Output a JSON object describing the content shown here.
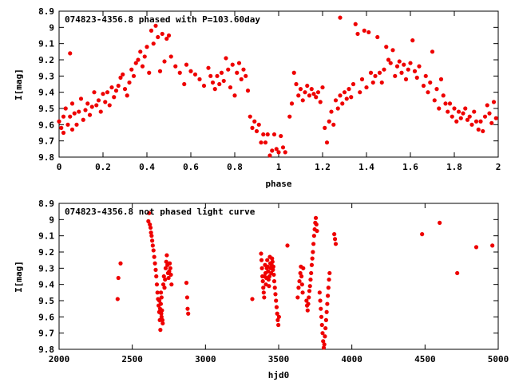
{
  "chart_data": [
    {
      "type": "scatter",
      "title": "074823-4356.8 phased with P=103.60day",
      "xlabel": "phase",
      "ylabel": "I[mag]",
      "xlim": [
        0,
        2
      ],
      "ylim": [
        9.8,
        8.9
      ],
      "y_reversed": true,
      "x_ticks": [
        "0",
        "0.2",
        "0.4",
        "0.6",
        "0.8",
        "1",
        "1.2",
        "1.4",
        "1.6",
        "1.8",
        "2"
      ],
      "y_ticks": [
        "8.9",
        "9",
        "9.1",
        "9.2",
        "9.3",
        "9.4",
        "9.5",
        "9.6",
        "9.7",
        "9.8"
      ],
      "marker_color": "#ee0000",
      "points": [
        [
          0.0,
          9.58
        ],
        [
          0.01,
          9.62
        ],
        [
          0.02,
          9.55
        ],
        [
          0.02,
          9.65
        ],
        [
          0.03,
          9.5
        ],
        [
          0.04,
          9.6
        ],
        [
          0.05,
          9.16
        ],
        [
          0.05,
          9.55
        ],
        [
          0.06,
          9.63
        ],
        [
          0.06,
          9.47
        ],
        [
          0.07,
          9.53
        ],
        [
          0.08,
          9.6
        ],
        [
          0.09,
          9.52
        ],
        [
          0.1,
          9.44
        ],
        [
          0.11,
          9.57
        ],
        [
          0.12,
          9.51
        ],
        [
          0.13,
          9.47
        ],
        [
          0.14,
          9.54
        ],
        [
          0.15,
          9.49
        ],
        [
          0.16,
          9.4
        ],
        [
          0.17,
          9.48
        ],
        [
          0.18,
          9.45
        ],
        [
          0.19,
          9.52
        ],
        [
          0.2,
          9.41
        ],
        [
          0.21,
          9.46
        ],
        [
          0.22,
          9.4
        ],
        [
          0.23,
          9.48
        ],
        [
          0.24,
          9.37
        ],
        [
          0.25,
          9.43
        ],
        [
          0.26,
          9.39
        ],
        [
          0.27,
          9.36
        ],
        [
          0.28,
          9.31
        ],
        [
          0.29,
          9.29
        ],
        [
          0.3,
          9.38
        ],
        [
          0.31,
          9.42
        ],
        [
          0.32,
          9.34
        ],
        [
          0.33,
          9.26
        ],
        [
          0.34,
          9.3
        ],
        [
          0.35,
          9.22
        ],
        [
          0.36,
          9.2
        ],
        [
          0.37,
          9.15
        ],
        [
          0.38,
          9.24
        ],
        [
          0.39,
          9.18
        ],
        [
          0.4,
          9.12
        ],
        [
          0.41,
          9.28
        ],
        [
          0.42,
          9.02
        ],
        [
          0.43,
          9.1
        ],
        [
          0.44,
          8.99
        ],
        [
          0.45,
          9.06
        ],
        [
          0.46,
          9.27
        ],
        [
          0.47,
          9.04
        ],
        [
          0.48,
          9.21
        ],
        [
          0.49,
          9.07
        ],
        [
          0.5,
          9.05
        ],
        [
          0.51,
          9.18
        ],
        [
          0.53,
          9.24
        ],
        [
          0.55,
          9.28
        ],
        [
          0.57,
          9.35
        ],
        [
          0.58,
          9.23
        ],
        [
          0.6,
          9.27
        ],
        [
          0.62,
          9.29
        ],
        [
          0.64,
          9.32
        ],
        [
          0.66,
          9.36
        ],
        [
          0.68,
          9.25
        ],
        [
          0.69,
          9.3
        ],
        [
          0.7,
          9.34
        ],
        [
          0.71,
          9.38
        ],
        [
          0.72,
          9.3
        ],
        [
          0.73,
          9.35
        ],
        [
          0.74,
          9.28
        ],
        [
          0.75,
          9.33
        ],
        [
          0.76,
          9.19
        ],
        [
          0.77,
          9.26
        ],
        [
          0.78,
          9.37
        ],
        [
          0.79,
          9.23
        ],
        [
          0.8,
          9.42
        ],
        [
          0.81,
          9.28
        ],
        [
          0.82,
          9.22
        ],
        [
          0.83,
          9.32
        ],
        [
          0.84,
          9.26
        ],
        [
          0.85,
          9.3
        ],
        [
          0.86,
          9.39
        ],
        [
          0.87,
          9.55
        ],
        [
          0.88,
          9.62
        ],
        [
          0.89,
          9.58
        ],
        [
          0.9,
          9.64
        ],
        [
          0.91,
          9.6
        ],
        [
          0.92,
          9.71
        ],
        [
          0.93,
          9.66
        ],
        [
          0.94,
          9.71
        ],
        [
          0.95,
          9.66
        ],
        [
          0.96,
          9.79
        ],
        [
          0.97,
          9.76
        ],
        [
          0.98,
          9.66
        ],
        [
          0.99,
          9.75
        ],
        [
          1.0,
          9.77
        ],
        [
          1.01,
          9.67
        ],
        [
          1.02,
          9.74
        ],
        [
          1.03,
          9.77
        ],
        [
          1.05,
          9.55
        ],
        [
          1.06,
          9.47
        ],
        [
          1.07,
          9.28
        ],
        [
          1.08,
          9.35
        ],
        [
          1.09,
          9.42
        ],
        [
          1.1,
          9.38
        ],
        [
          1.11,
          9.45
        ],
        [
          1.12,
          9.4
        ],
        [
          1.13,
          9.36
        ],
        [
          1.14,
          9.42
        ],
        [
          1.15,
          9.38
        ],
        [
          1.16,
          9.41
        ],
        [
          1.17,
          9.43
        ],
        [
          1.18,
          9.4
        ],
        [
          1.19,
          9.46
        ],
        [
          1.2,
          9.37
        ],
        [
          1.21,
          9.62
        ],
        [
          1.22,
          9.71
        ],
        [
          1.23,
          9.58
        ],
        [
          1.24,
          9.52
        ],
        [
          1.25,
          9.6
        ],
        [
          1.26,
          9.45
        ],
        [
          1.27,
          9.5
        ],
        [
          1.28,
          8.94
        ],
        [
          1.28,
          9.42
        ],
        [
          1.29,
          9.47
        ],
        [
          1.3,
          9.4
        ],
        [
          1.31,
          9.44
        ],
        [
          1.32,
          9.38
        ],
        [
          1.33,
          9.43
        ],
        [
          1.34,
          9.35
        ],
        [
          1.35,
          8.98
        ],
        [
          1.36,
          9.04
        ],
        [
          1.37,
          9.4
        ],
        [
          1.38,
          9.32
        ],
        [
          1.39,
          9.02
        ],
        [
          1.4,
          9.37
        ],
        [
          1.41,
          9.03
        ],
        [
          1.42,
          9.28
        ],
        [
          1.43,
          9.34
        ],
        [
          1.44,
          9.3
        ],
        [
          1.45,
          9.06
        ],
        [
          1.46,
          9.28
        ],
        [
          1.47,
          9.34
        ],
        [
          1.48,
          9.26
        ],
        [
          1.49,
          9.12
        ],
        [
          1.5,
          9.2
        ],
        [
          1.51,
          9.22
        ],
        [
          1.52,
          9.14
        ],
        [
          1.53,
          9.3
        ],
        [
          1.54,
          9.24
        ],
        [
          1.55,
          9.21
        ],
        [
          1.56,
          9.28
        ],
        [
          1.57,
          9.23
        ],
        [
          1.58,
          9.32
        ],
        [
          1.59,
          9.26
        ],
        [
          1.6,
          9.22
        ],
        [
          1.61,
          9.08
        ],
        [
          1.62,
          9.27
        ],
        [
          1.63,
          9.31
        ],
        [
          1.64,
          9.24
        ],
        [
          1.66,
          9.36
        ],
        [
          1.67,
          9.3
        ],
        [
          1.68,
          9.4
        ],
        [
          1.69,
          9.34
        ],
        [
          1.7,
          9.15
        ],
        [
          1.71,
          9.45
        ],
        [
          1.72,
          9.38
        ],
        [
          1.73,
          9.5
        ],
        [
          1.74,
          9.32
        ],
        [
          1.75,
          9.42
        ],
        [
          1.76,
          9.47
        ],
        [
          1.77,
          9.52
        ],
        [
          1.78,
          9.47
        ],
        [
          1.79,
          9.55
        ],
        [
          1.8,
          9.5
        ],
        [
          1.81,
          9.58
        ],
        [
          1.82,
          9.52
        ],
        [
          1.83,
          9.56
        ],
        [
          1.84,
          9.53
        ],
        [
          1.85,
          9.5
        ],
        [
          1.86,
          9.57
        ],
        [
          1.87,
          9.55
        ],
        [
          1.88,
          9.6
        ],
        [
          1.89,
          9.52
        ],
        [
          1.9,
          9.58
        ],
        [
          1.91,
          9.63
        ],
        [
          1.92,
          9.58
        ],
        [
          1.93,
          9.64
        ],
        [
          1.94,
          9.55
        ],
        [
          1.95,
          9.48
        ],
        [
          1.96,
          9.53
        ],
        [
          1.97,
          9.59
        ],
        [
          1.98,
          9.46
        ],
        [
          1.99,
          9.56
        ]
      ]
    },
    {
      "type": "scatter",
      "title": "074823-4356.8 not phased light curve",
      "xlabel": "hjd0",
      "ylabel": "I[mag]",
      "xlim": [
        2000,
        5000
      ],
      "ylim": [
        9.8,
        8.9
      ],
      "y_reversed": true,
      "x_ticks": [
        "2000",
        "2500",
        "3000",
        "3500",
        "4000",
        "4500",
        "5000"
      ],
      "y_ticks": [
        "8.9",
        "9",
        "9.1",
        "9.2",
        "9.3",
        "9.4",
        "9.5",
        "9.6",
        "9.7",
        "9.8"
      ],
      "marker_color": "#ee0000",
      "points": [
        [
          2400,
          9.49
        ],
        [
          2405,
          9.36
        ],
        [
          2420,
          9.27
        ],
        [
          2610,
          9.01
        ],
        [
          2615,
          8.96
        ],
        [
          2620,
          9.03
        ],
        [
          2625,
          9.05
        ],
        [
          2628,
          9.08
        ],
        [
          2632,
          9.1
        ],
        [
          2636,
          9.13
        ],
        [
          2640,
          9.16
        ],
        [
          2645,
          9.19
        ],
        [
          2650,
          9.23
        ],
        [
          2655,
          9.27
        ],
        [
          2660,
          9.31
        ],
        [
          2664,
          9.35
        ],
        [
          2668,
          9.4
        ],
        [
          2672,
          9.45
        ],
        [
          2676,
          9.49
        ],
        [
          2680,
          9.53
        ],
        [
          2684,
          9.57
        ],
        [
          2688,
          9.62
        ],
        [
          2692,
          9.68
        ],
        [
          2685,
          9.5
        ],
        [
          2690,
          9.55
        ],
        [
          2695,
          9.52
        ],
        [
          2698,
          9.58
        ],
        [
          2700,
          9.6
        ],
        [
          2703,
          9.56
        ],
        [
          2706,
          9.62
        ],
        [
          2708,
          9.64
        ],
        [
          2700,
          9.48
        ],
        [
          2696,
          9.45
        ],
        [
          2712,
          9.4
        ],
        [
          2716,
          9.35
        ],
        [
          2720,
          9.42
        ],
        [
          2724,
          9.37
        ],
        [
          2728,
          9.3
        ],
        [
          2732,
          9.26
        ],
        [
          2736,
          9.22
        ],
        [
          2740,
          9.28
        ],
        [
          2744,
          9.33
        ],
        [
          2748,
          9.36
        ],
        [
          2752,
          9.32
        ],
        [
          2756,
          9.27
        ],
        [
          2760,
          9.3
        ],
        [
          2764,
          9.34
        ],
        [
          2768,
          9.4
        ],
        [
          2870,
          9.39
        ],
        [
          2875,
          9.48
        ],
        [
          2878,
          9.55
        ],
        [
          2882,
          9.58
        ],
        [
          3320,
          9.49
        ],
        [
          3380,
          9.21
        ],
        [
          3383,
          9.25
        ],
        [
          3386,
          9.3
        ],
        [
          3389,
          9.35
        ],
        [
          3392,
          9.38
        ],
        [
          3395,
          9.42
        ],
        [
          3398,
          9.45
        ],
        [
          3401,
          9.48
        ],
        [
          3404,
          9.35
        ],
        [
          3407,
          9.28
        ],
        [
          3410,
          9.33
        ],
        [
          3413,
          9.4
        ],
        [
          3416,
          9.36
        ],
        [
          3419,
          9.3
        ],
        [
          3422,
          9.25
        ],
        [
          3425,
          9.29
        ],
        [
          3428,
          9.32
        ],
        [
          3431,
          9.37
        ],
        [
          3434,
          9.41
        ],
        [
          3437,
          9.35
        ],
        [
          3440,
          9.23
        ],
        [
          3443,
          9.27
        ],
        [
          3446,
          9.3
        ],
        [
          3449,
          9.33
        ],
        [
          3452,
          9.28
        ],
        [
          3455,
          9.24
        ],
        [
          3458,
          9.26
        ],
        [
          3461,
          9.31
        ],
        [
          3464,
          9.29
        ],
        [
          3467,
          9.34
        ],
        [
          3470,
          9.38
        ],
        [
          3474,
          9.42
        ],
        [
          3478,
          9.46
        ],
        [
          3482,
          9.5
        ],
        [
          3486,
          9.54
        ],
        [
          3490,
          9.58
        ],
        [
          3494,
          9.62
        ],
        [
          3498,
          9.65
        ],
        [
          3502,
          9.6
        ],
        [
          3560,
          9.16
        ],
        [
          3630,
          9.48
        ],
        [
          3636,
          9.42
        ],
        [
          3642,
          9.38
        ],
        [
          3648,
          9.33
        ],
        [
          3652,
          9.29
        ],
        [
          3656,
          9.35
        ],
        [
          3660,
          9.4
        ],
        [
          3664,
          9.45
        ],
        [
          3668,
          9.3
        ],
        [
          3690,
          9.5
        ],
        [
          3694,
          9.53
        ],
        [
          3698,
          9.56
        ],
        [
          3702,
          9.52
        ],
        [
          3706,
          9.48
        ],
        [
          3710,
          9.44
        ],
        [
          3714,
          9.41
        ],
        [
          3718,
          9.37
        ],
        [
          3722,
          9.33
        ],
        [
          3726,
          9.28
        ],
        [
          3730,
          9.24
        ],
        [
          3734,
          9.2
        ],
        [
          3738,
          9.15
        ],
        [
          3742,
          9.1
        ],
        [
          3746,
          9.06
        ],
        [
          3750,
          9.02
        ],
        [
          3754,
          8.99
        ],
        [
          3758,
          9.03
        ],
        [
          3762,
          9.07
        ],
        [
          3780,
          9.45
        ],
        [
          3784,
          9.5
        ],
        [
          3788,
          9.55
        ],
        [
          3792,
          9.6
        ],
        [
          3796,
          9.65
        ],
        [
          3800,
          9.7
        ],
        [
          3804,
          9.75
        ],
        [
          3808,
          9.79
        ],
        [
          3812,
          9.77
        ],
        [
          3816,
          9.72
        ],
        [
          3820,
          9.67
        ],
        [
          3824,
          9.62
        ],
        [
          3828,
          9.57
        ],
        [
          3832,
          9.52
        ],
        [
          3836,
          9.47
        ],
        [
          3840,
          9.42
        ],
        [
          3844,
          9.37
        ],
        [
          3848,
          9.33
        ],
        [
          3880,
          9.09
        ],
        [
          3885,
          9.12
        ],
        [
          3890,
          9.15
        ],
        [
          4480,
          9.09
        ],
        [
          4600,
          9.02
        ],
        [
          4720,
          9.33
        ],
        [
          4850,
          9.17
        ],
        [
          4960,
          9.16
        ]
      ]
    }
  ]
}
